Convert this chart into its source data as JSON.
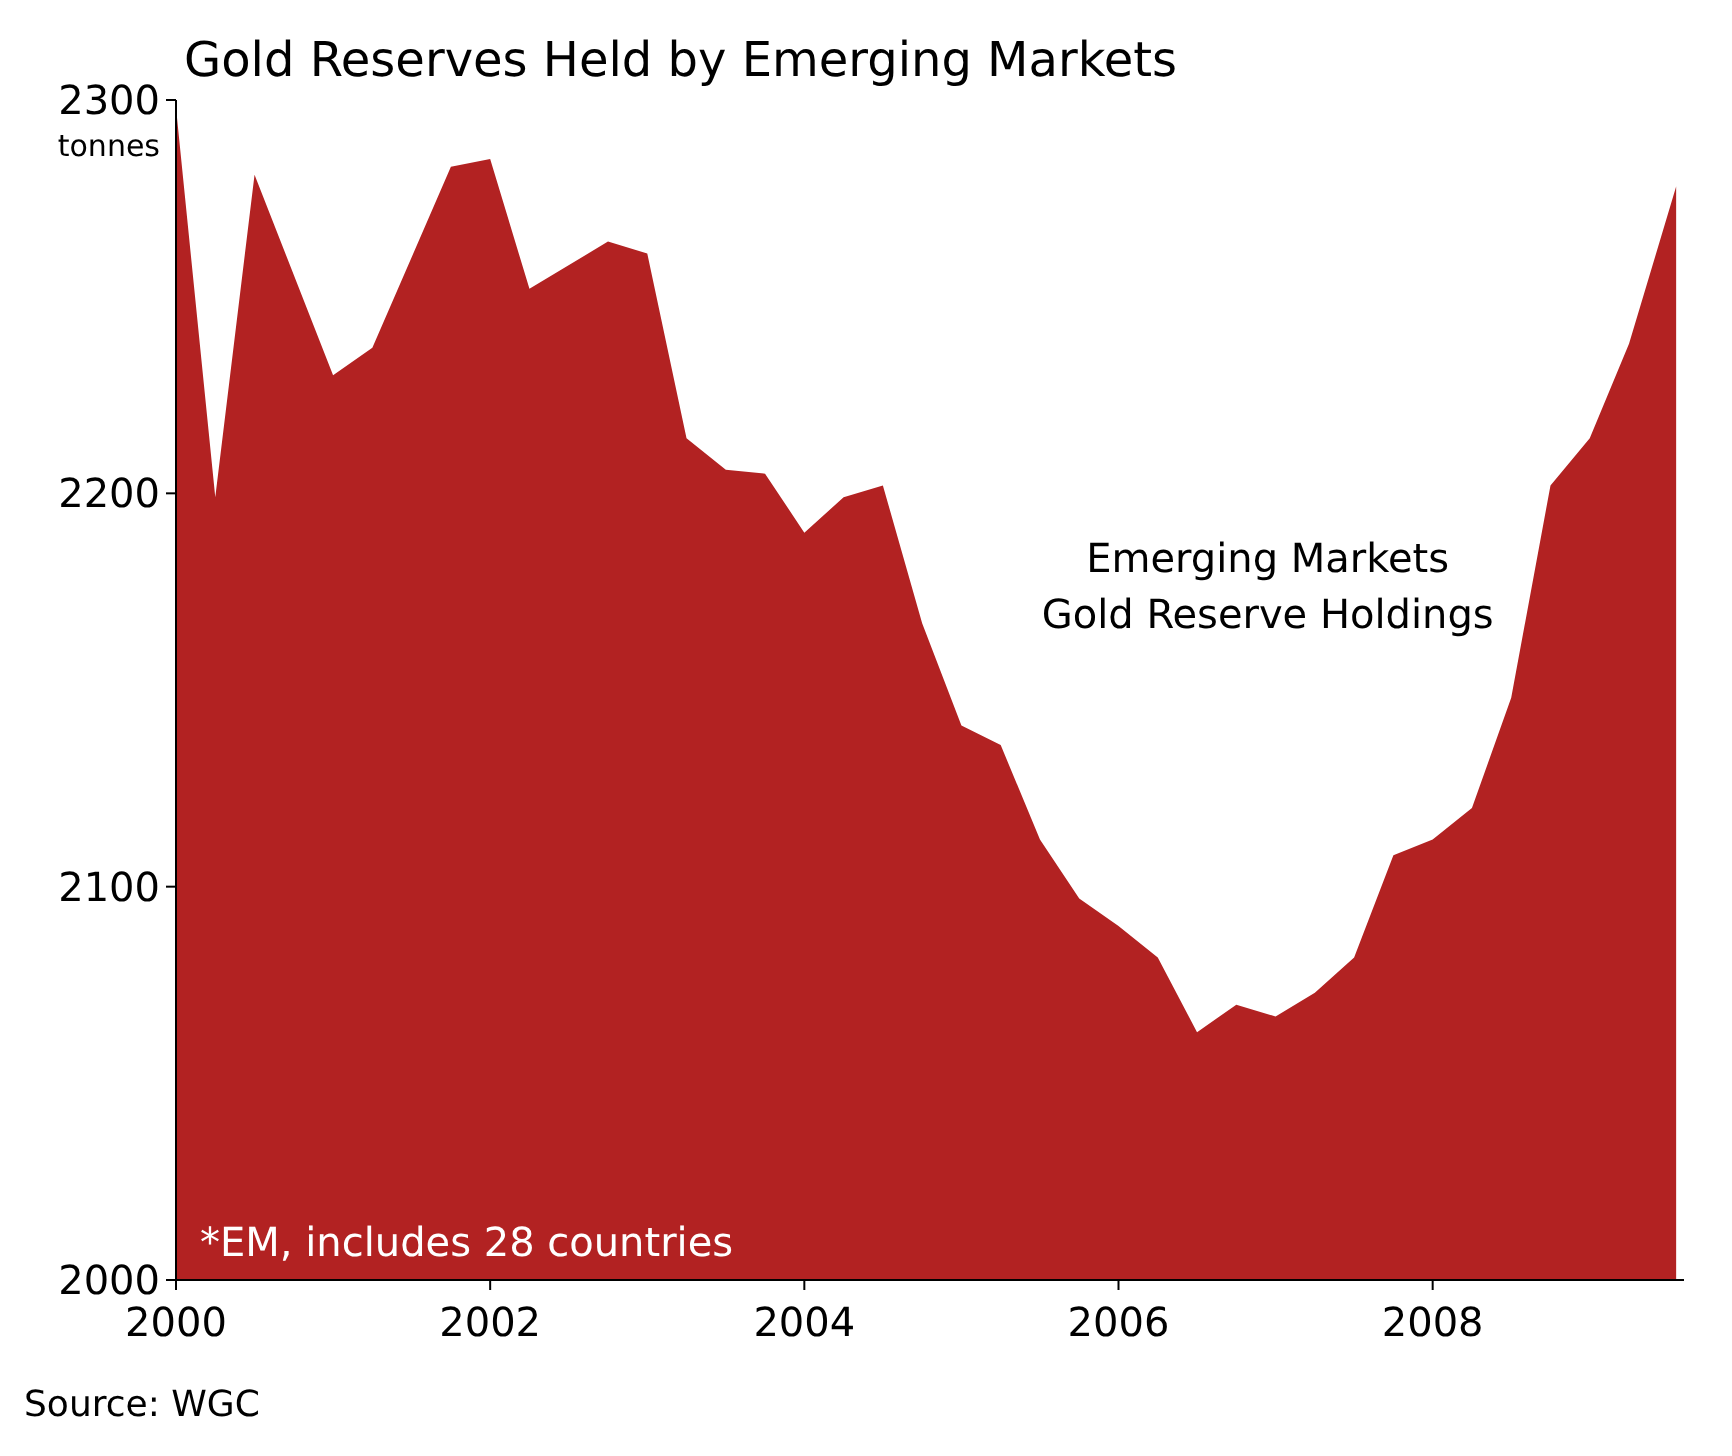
{
  "chart_data": {
    "type": "area",
    "title": "Gold Reserves Held by Emerging Markets",
    "ylabel": "tonnes",
    "x": [
      2000.0,
      2000.25,
      2000.5,
      2001.0,
      2001.25,
      2001.75,
      2002.0,
      2002.25,
      2002.75,
      2003.0,
      2003.25,
      2003.5,
      2003.75,
      2004.0,
      2004.25,
      2004.5,
      2004.75,
      2005.0,
      2005.25,
      2005.5,
      2005.75,
      2006.0,
      2006.25,
      2006.5,
      2006.75,
      2007.0,
      2007.25,
      2007.5,
      2007.75,
      2008.0,
      2008.25,
      2008.5,
      2008.75,
      2009.0,
      2009.25,
      2009.55
    ],
    "series": [
      {
        "name": "Emerging Markets Gold Reserve Holdings",
        "color": "#b22222",
        "values": [
          2298,
          2199,
          2281,
          2230,
          2237,
          2283,
          2285,
          2252,
          2264,
          2261,
          2214,
          2206,
          2205,
          2190,
          2199,
          2202,
          2167,
          2141,
          2136,
          2112,
          2097,
          2090,
          2082,
          2063,
          2070,
          2067,
          2073,
          2082,
          2108,
          2112,
          2120,
          2148,
          2202,
          2214,
          2238,
          2278
        ]
      }
    ],
    "xlim": [
      2000,
      2009.6
    ],
    "xticks": [
      2000,
      2002,
      2004,
      2006,
      2008
    ],
    "ylim": [
      2000,
      2300
    ],
    "yticks": [
      2000,
      2100,
      2200,
      2300
    ],
    "grid": false,
    "annotations": [
      "*EM, includes 28 countries",
      "Source: WGC"
    ]
  }
}
